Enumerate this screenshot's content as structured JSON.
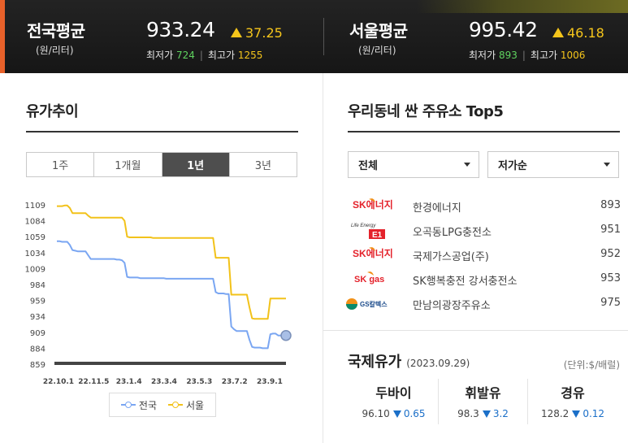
{
  "national": {
    "title": "전국평균",
    "unit": "(원/리터)",
    "price": "933.24",
    "change": "37.25",
    "min_label": "최저가",
    "min_value": "724",
    "max_label": "최고가",
    "max_value": "1255"
  },
  "seoul": {
    "title": "서울평균",
    "unit": "(원/리터)",
    "price": "995.42",
    "change": "46.18",
    "min_label": "최저가",
    "min_value": "893",
    "max_label": "최고가",
    "max_value": "1006"
  },
  "trend": {
    "title": "유가추이",
    "tabs": [
      "1주",
      "1개월",
      "1년",
      "3년"
    ],
    "active_tab": 2
  },
  "chart_data": {
    "type": "line",
    "x_ticks": [
      "22.10.1",
      "22.11.5",
      "23.1.4",
      "23.3.4",
      "23.5.3",
      "23.7.2",
      "23.9.1"
    ],
    "y_ticks": [
      1109,
      1084,
      1059,
      1034,
      1009,
      984,
      959,
      934,
      909,
      884,
      859
    ],
    "ylim": [
      859,
      1109
    ],
    "legend_position": "bottom",
    "series": [
      {
        "name": "전국",
        "color": "#7aa6f2",
        "values": [
          1052,
          1052,
          1051,
          1051,
          1051,
          1046,
          1038,
          1037,
          1036,
          1036,
          1036,
          1036,
          1030,
          1024,
          1024,
          1024,
          1024,
          1024,
          1024,
          1024,
          1024,
          1024,
          1024,
          1023,
          1023,
          1022,
          1018,
          996,
          995,
          995,
          995,
          995,
          994,
          994,
          994,
          994,
          994,
          994,
          994,
          994,
          994,
          994,
          993,
          993,
          993,
          993,
          993,
          993,
          993,
          993,
          993,
          993,
          993,
          993,
          993,
          993,
          993,
          993,
          993,
          993,
          993,
          972,
          970,
          970,
          970,
          969,
          969,
          918,
          914,
          911,
          911,
          911,
          911,
          911,
          897,
          886,
          885,
          885,
          885,
          884,
          884,
          884,
          906,
          907,
          907,
          904,
          904,
          904,
          904
        ]
      },
      {
        "name": "서울",
        "color": "#f2c21a",
        "values": [
          1107,
          1107,
          1107,
          1108,
          1108,
          1104,
          1096,
          1096,
          1096,
          1096,
          1096,
          1096,
          1092,
          1089,
          1089,
          1089,
          1089,
          1089,
          1089,
          1089,
          1089,
          1089,
          1089,
          1089,
          1089,
          1089,
          1084,
          1059,
          1058,
          1058,
          1058,
          1058,
          1058,
          1058,
          1058,
          1058,
          1058,
          1057,
          1057,
          1057,
          1057,
          1057,
          1057,
          1057,
          1057,
          1057,
          1057,
          1057,
          1057,
          1057,
          1057,
          1057,
          1057,
          1057,
          1057,
          1057,
          1057,
          1057,
          1057,
          1057,
          1057,
          1026,
          1026,
          1026,
          1026,
          1026,
          1026,
          968,
          968,
          968,
          968,
          968,
          968,
          968,
          948,
          931,
          930,
          930,
          930,
          930,
          930,
          930,
          962,
          962,
          962,
          962,
          962,
          962,
          962
        ]
      }
    ]
  },
  "cheap": {
    "title": "우리동네 싼 주유소 Top5",
    "region": "전체",
    "sort": "저가순",
    "stations": [
      {
        "logo": "SK에너지",
        "name": "한경에너지",
        "price": "893"
      },
      {
        "logo": "E1",
        "name": "오곡동LPG충전소",
        "price": "951"
      },
      {
        "logo": "SK에너지",
        "name": "국제가스공업(주)",
        "price": "952"
      },
      {
        "logo": "SK gas",
        "name": "SK행복충전 강서충전소",
        "price": "953"
      },
      {
        "logo": "GS칼텍스",
        "name": "만남의광장주유소",
        "price": "975"
      }
    ]
  },
  "intl": {
    "title": "국제유가",
    "date": "(2023.09.29)",
    "unit": "(단위:$/배럴)",
    "items": [
      {
        "name": "두바이",
        "value": "96.10",
        "change": "0.65"
      },
      {
        "name": "휘발유",
        "value": "98.3",
        "change": "3.2"
      },
      {
        "name": "경유",
        "value": "128.2",
        "change": "0.12"
      }
    ]
  }
}
